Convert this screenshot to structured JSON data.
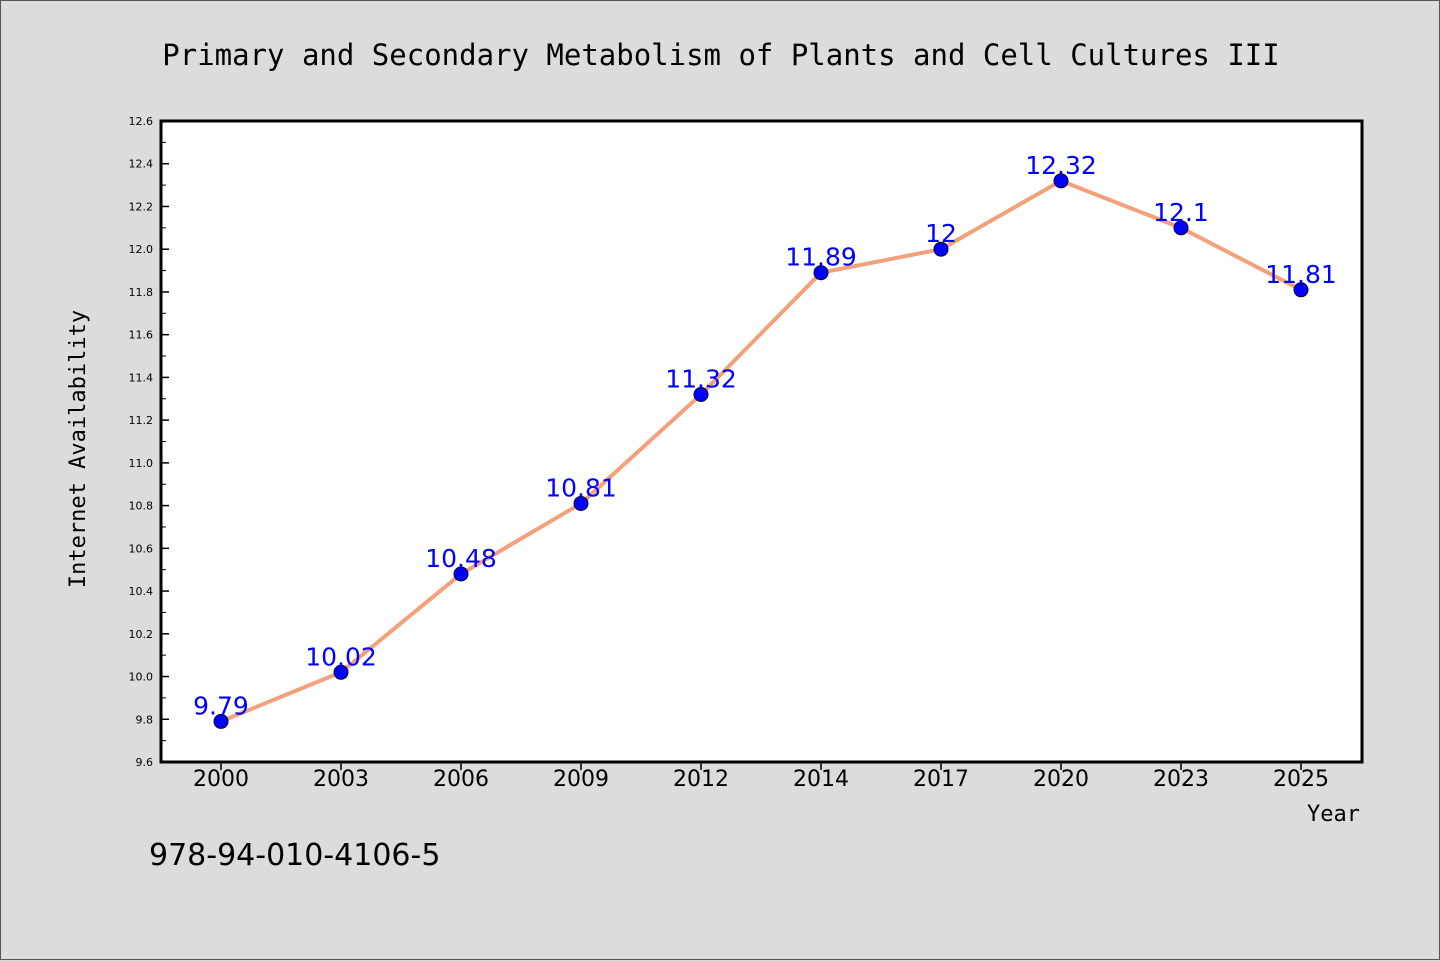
{
  "footer": {
    "isbn": "978-94-010-4106-5"
  },
  "colors": {
    "background": "#dcdcdc",
    "plot_background": "#ffffff",
    "line": "#f4a07a",
    "marker": "#0000ff",
    "data_label": "#0000ff"
  },
  "chart_data": {
    "type": "line",
    "title": "Primary and Secondary Metabolism of Plants and Cell Cultures III",
    "xlabel": "Year",
    "ylabel": "Internet Availability",
    "categories": [
      "2000",
      "2003",
      "2006",
      "2009",
      "2012",
      "2014",
      "2017",
      "2020",
      "2023",
      "2025"
    ],
    "series": [
      {
        "values": [
          9.79,
          10.02,
          10.48,
          10.81,
          11.32,
          11.89,
          12,
          12.32,
          12.1,
          11.81
        ]
      }
    ],
    "data_labels": [
      "9.79",
      "10.02",
      "10.48",
      "10.81",
      "11.32",
      "11.89",
      "12",
      "12.32",
      "12.1",
      "11.81"
    ],
    "ylim": [
      9.6,
      12.6
    ],
    "yticks": [
      "9.6",
      "9.8",
      "10.0",
      "10.2",
      "10.4",
      "10.6",
      "10.8",
      "11.0",
      "11.2",
      "11.4",
      "11.6",
      "11.8",
      "12.0",
      "12.2",
      "12.4",
      "12.6"
    ],
    "grid": false,
    "legend": "none"
  }
}
